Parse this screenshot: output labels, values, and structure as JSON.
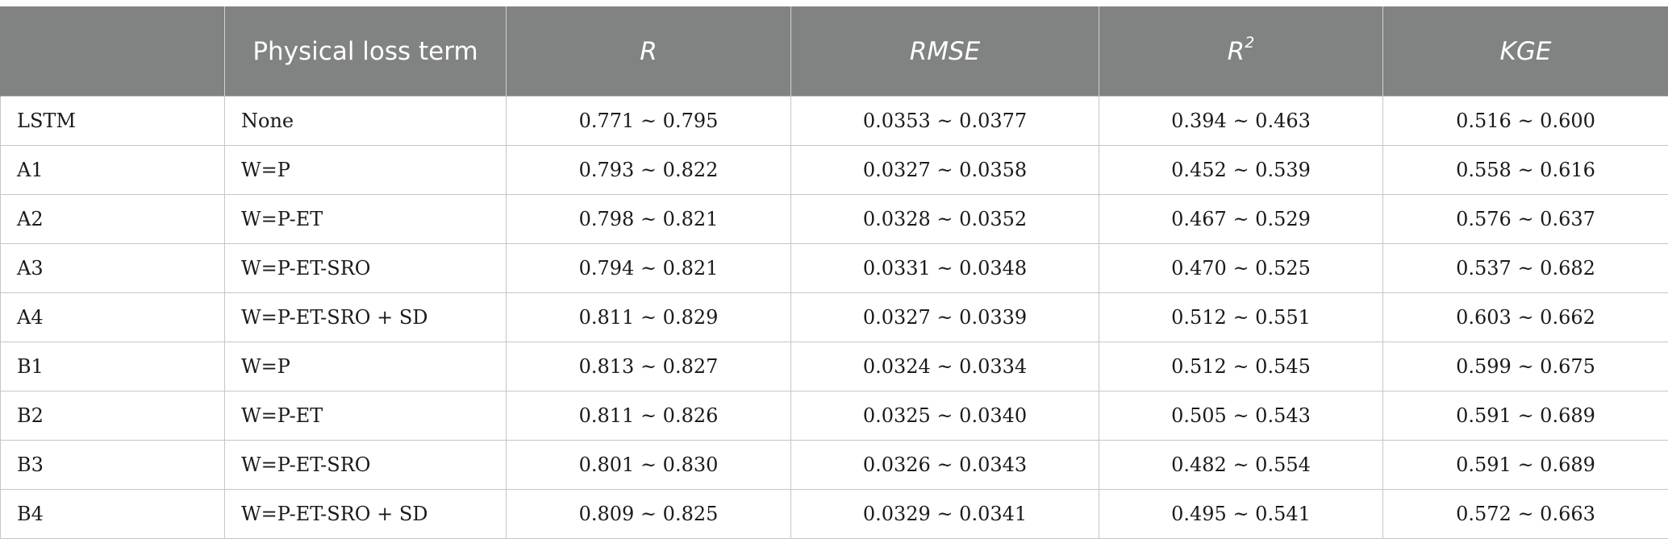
{
  "table": {
    "headers": [
      {
        "text": "",
        "sup": ""
      },
      {
        "text": "Physical loss term",
        "sup": ""
      },
      {
        "text": "R",
        "sup": ""
      },
      {
        "text": "RMSE",
        "sup": ""
      },
      {
        "text": "R",
        "sup": "2"
      },
      {
        "text": "KGE",
        "sup": ""
      }
    ],
    "rows": [
      [
        "LSTM",
        "None",
        "0.771 ~ 0.795",
        "0.0353 ~ 0.0377",
        "0.394 ~ 0.463",
        "0.516 ~ 0.600"
      ],
      [
        "A1",
        "W=P",
        "0.793 ~ 0.822",
        "0.0327 ~ 0.0358",
        "0.452 ~ 0.539",
        "0.558 ~ 0.616"
      ],
      [
        "A2",
        "W=P-ET",
        "0.798 ~ 0.821",
        "0.0328 ~ 0.0352",
        "0.467 ~ 0.529",
        "0.576 ~ 0.637"
      ],
      [
        "A3",
        "W=P-ET-SRO",
        "0.794 ~ 0.821",
        "0.0331 ~ 0.0348",
        "0.470 ~ 0.525",
        "0.537 ~ 0.682"
      ],
      [
        "A4",
        "W=P-ET-SRO + SD",
        "0.811 ~ 0.829",
        "0.0327 ~ 0.0339",
        "0.512 ~ 0.551",
        "0.603 ~ 0.662"
      ],
      [
        "B1",
        "W=P",
        "0.813 ~ 0.827",
        "0.0324 ~ 0.0334",
        "0.512 ~ 0.545",
        "0.599 ~ 0.675"
      ],
      [
        "B2",
        "W=P-ET",
        "0.811 ~ 0.826",
        "0.0325 ~ 0.0340",
        "0.505 ~ 0.543",
        "0.591 ~ 0.689"
      ],
      [
        "B3",
        "W=P-ET-SRO",
        "0.801 ~ 0.830",
        "0.0326 ~ 0.0343",
        "0.482 ~ 0.554",
        "0.591 ~ 0.689"
      ],
      [
        "B4",
        "W=P-ET-SRO + SD",
        "0.809 ~ 0.825",
        "0.0329 ~ 0.0341",
        "0.495 ~ 0.541",
        "0.572 ~ 0.663"
      ]
    ]
  }
}
